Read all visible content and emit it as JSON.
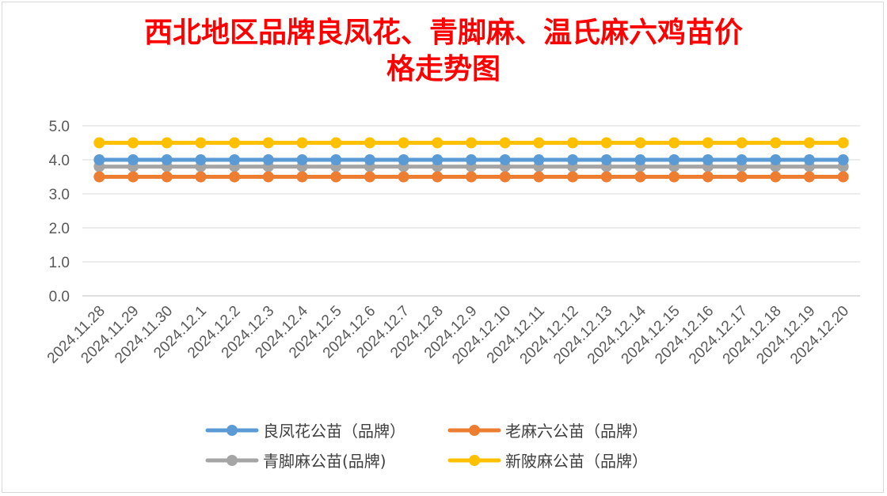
{
  "chart_data": {
    "type": "line",
    "title_line1": "西北地区品牌良凤花、青脚麻、温氏麻六鸡苗价",
    "title_line2": "格走势图",
    "categories": [
      "2024.11.28",
      "2024.11.29",
      "2024.11.30",
      "2024.12.1",
      "2024.12.2",
      "2024.12.3",
      "2024.12.4",
      "2024.12.5",
      "2024.12.6",
      "2024.12.7",
      "2024.12.8",
      "2024.12.9",
      "2024.12.10",
      "2024.12.11",
      "2024.12.12",
      "2024.12.13",
      "2024.12.14",
      "2024.12.15",
      "2024.12.16",
      "2024.12.17",
      "2024.12.18",
      "2024.12.19",
      "2024.12.20"
    ],
    "ylim": [
      0,
      5
    ],
    "yticks": [
      "0.0",
      "1.0",
      "2.0",
      "3.0",
      "4.0",
      "5.0"
    ],
    "grid": true,
    "legend_position": "bottom",
    "series": [
      {
        "name": "良凤花公苗（品牌）",
        "color": "#5b9bd5",
        "values": [
          4.0,
          4.0,
          4.0,
          4.0,
          4.0,
          4.0,
          4.0,
          4.0,
          4.0,
          4.0,
          4.0,
          4.0,
          4.0,
          4.0,
          4.0,
          4.0,
          4.0,
          4.0,
          4.0,
          4.0,
          4.0,
          4.0,
          4.0
        ]
      },
      {
        "name": "老麻六公苗（品牌）",
        "color": "#ed7d31",
        "values": [
          3.5,
          3.5,
          3.5,
          3.5,
          3.5,
          3.5,
          3.5,
          3.5,
          3.5,
          3.5,
          3.5,
          3.5,
          3.5,
          3.5,
          3.5,
          3.5,
          3.5,
          3.5,
          3.5,
          3.5,
          3.5,
          3.5,
          3.5
        ]
      },
      {
        "name": "青脚麻公苗(品牌)",
        "color": "#a5a5a5",
        "values": [
          3.8,
          3.8,
          3.8,
          3.8,
          3.8,
          3.8,
          3.8,
          3.8,
          3.8,
          3.8,
          3.8,
          3.8,
          3.8,
          3.8,
          3.8,
          3.8,
          3.8,
          3.8,
          3.8,
          3.8,
          3.8,
          3.8,
          3.8
        ]
      },
      {
        "name": "新陂麻公苗（品牌）",
        "color": "#ffc000",
        "values": [
          4.5,
          4.5,
          4.5,
          4.5,
          4.5,
          4.5,
          4.5,
          4.5,
          4.5,
          4.5,
          4.5,
          4.5,
          4.5,
          4.5,
          4.5,
          4.5,
          4.5,
          4.5,
          4.5,
          4.5,
          4.5,
          4.5,
          4.5
        ]
      }
    ]
  }
}
